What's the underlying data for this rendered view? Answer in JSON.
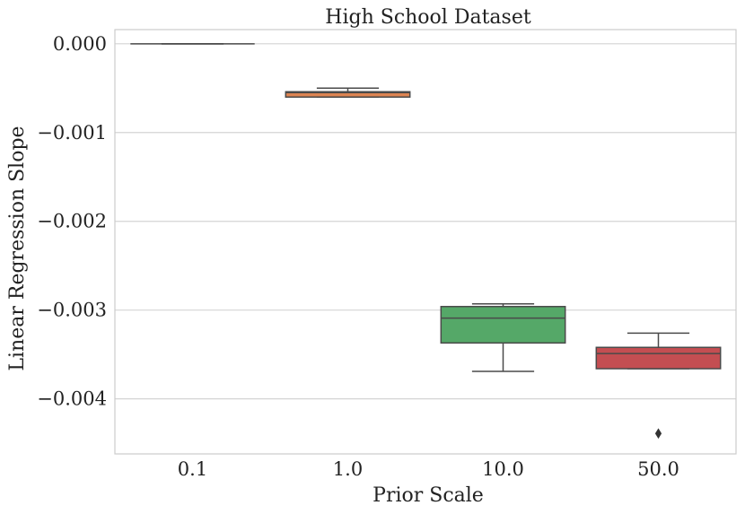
{
  "chart_data": {
    "type": "box",
    "title": "High School Dataset",
    "xlabel": "Prior Scale",
    "ylabel": "Linear Regression Slope",
    "categories": [
      "0.1",
      "1.0",
      "10.0",
      "50.0"
    ],
    "yticks": [
      0.0,
      -0.001,
      -0.002,
      -0.003,
      -0.004
    ],
    "ytick_labels": [
      "0.000",
      "−0.001",
      "−0.002",
      "−0.003",
      "−0.004"
    ],
    "ylim": [
      -0.00462,
      0.00016
    ],
    "grid": "horizontal",
    "boxes": [
      {
        "category": "0.1",
        "whisker_low": 0.0,
        "q1": 0.0,
        "median": 0.0,
        "q3": 0.0,
        "whisker_high": 0.0,
        "outliers": [],
        "color": "#4c72b0"
      },
      {
        "category": "1.0",
        "whisker_low": -0.0006,
        "q1": -0.0006,
        "median": -0.00055,
        "q3": -0.00054,
        "whisker_high": -0.0005,
        "outliers": [],
        "color": "#dd8452"
      },
      {
        "category": "10.0",
        "whisker_low": -0.00369,
        "q1": -0.00337,
        "median": -0.00309,
        "q3": -0.00296,
        "whisker_high": -0.00293,
        "outliers": [],
        "color": "#55a868"
      },
      {
        "category": "50.0",
        "whisker_low": -0.00366,
        "q1": -0.00366,
        "median": -0.00349,
        "q3": -0.00342,
        "whisker_high": -0.00326,
        "outliers": [
          -0.00439
        ],
        "color": "#c44e52"
      }
    ]
  }
}
